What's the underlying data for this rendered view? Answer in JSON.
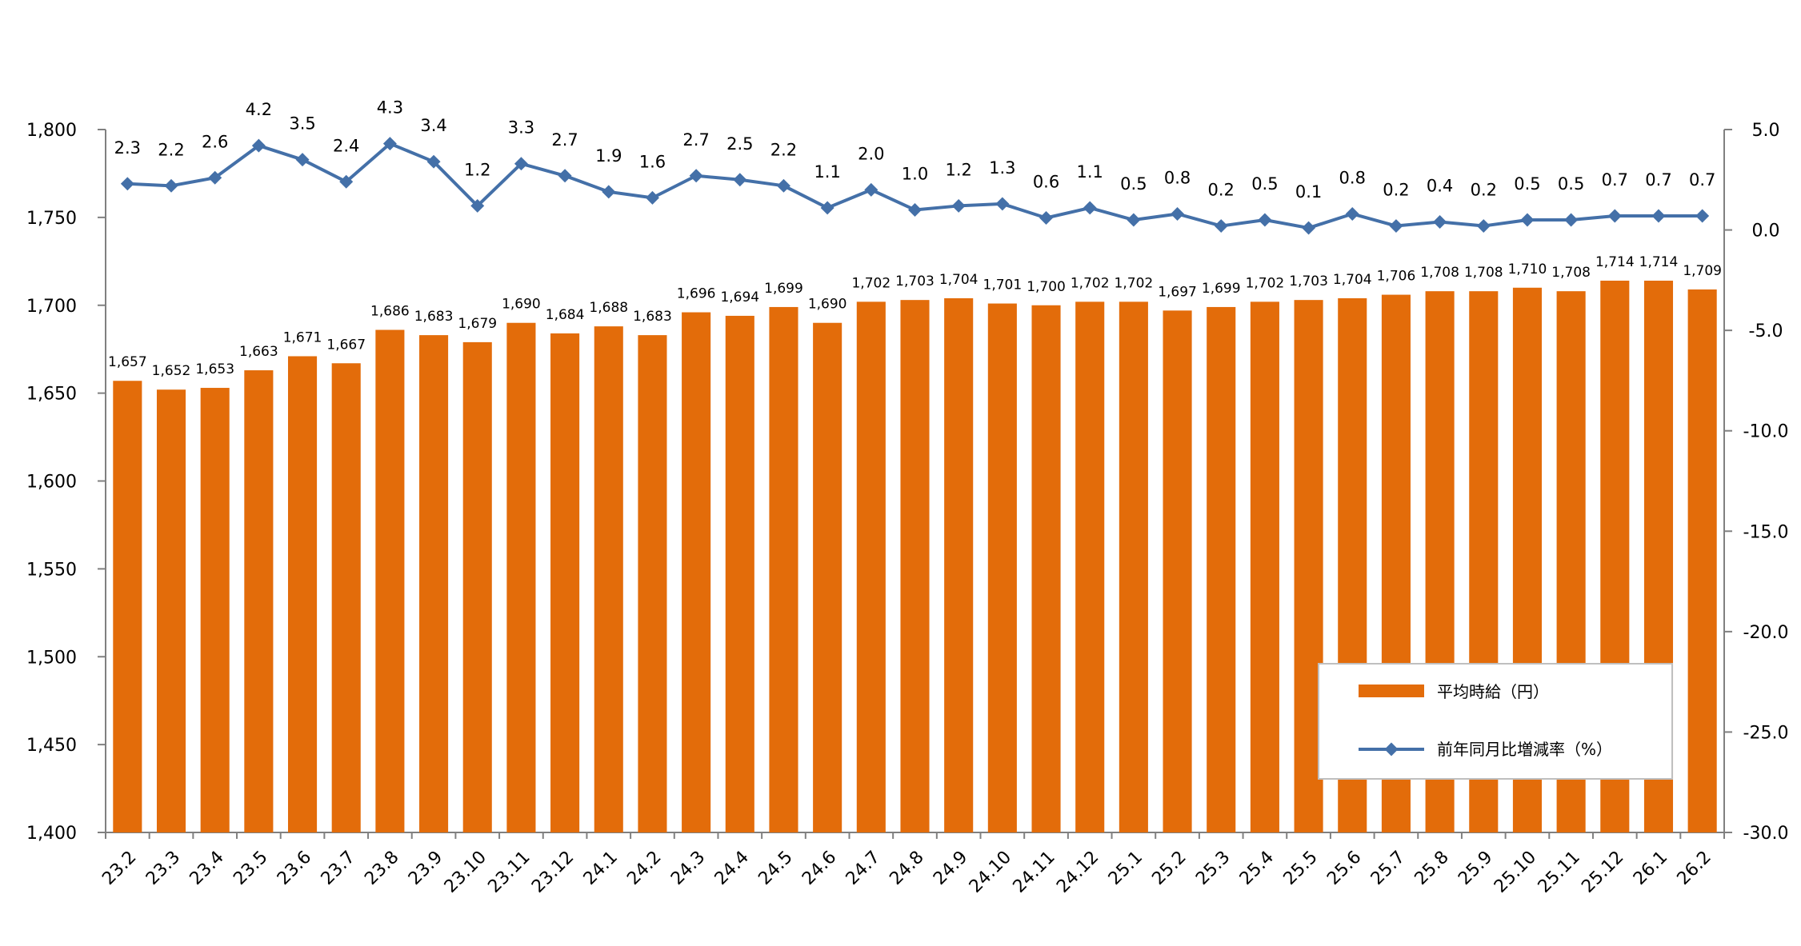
{
  "chart_data": {
    "type": "bar",
    "categories": [
      "23.2",
      "23.3",
      "23.4",
      "23.5",
      "23.6",
      "23.7",
      "23.8",
      "23.9",
      "23.10",
      "23.11",
      "23.12",
      "24.1",
      "24.2",
      "24.3",
      "24.4",
      "24.5",
      "24.6",
      "24.7",
      "24.8",
      "24.9",
      "24.10",
      "24.11",
      "24.12",
      "25.1",
      "25.2",
      "25.3",
      "25.4",
      "25.5",
      "25.6",
      "25.7",
      "25.8",
      "25.9",
      "25.10",
      "25.11",
      "25.12",
      "26.1",
      "26.2"
    ],
    "series": [
      {
        "name": "平均時給（円）",
        "type": "bar",
        "axis": "left",
        "color": "#E36C0A",
        "values": [
          1657,
          1652,
          1653,
          1663,
          1671,
          1667,
          1686,
          1683,
          1679,
          1690,
          1684,
          1688,
          1683,
          1696,
          1694,
          1699,
          1690,
          1702,
          1703,
          1704,
          1701,
          1700,
          1702,
          1702,
          1697,
          1699,
          1702,
          1703,
          1704,
          1706,
          1708,
          1708,
          1710,
          1708,
          1714,
          1714,
          1709
        ],
        "labels": [
          "1,657",
          "1,652",
          "1,653",
          "1,663",
          "1,671",
          "1,667",
          "1,686",
          "1,683",
          "1,679",
          "1,690",
          "1,684",
          "1,688",
          "1,683",
          "1,696",
          "1,694",
          "1,699",
          "1,690",
          "1,702",
          "1,703",
          "1,704",
          "1,701",
          "1,700",
          "1,702",
          "1,702",
          "1,697",
          "1,699",
          "1,702",
          "1,703",
          "1,704",
          "1,706",
          "1,708",
          "1,708",
          "1,710",
          "1,708",
          "1,714",
          "1,714",
          "1,709"
        ]
      },
      {
        "name": "前年同月比増減率（%）",
        "type": "line",
        "axis": "right",
        "color": "#4470A8",
        "values": [
          2.3,
          2.2,
          2.6,
          4.2,
          3.5,
          2.4,
          4.3,
          3.4,
          1.2,
          3.3,
          2.7,
          1.9,
          1.6,
          2.7,
          2.5,
          2.2,
          1.1,
          2.0,
          1.0,
          1.2,
          1.3,
          0.6,
          1.1,
          0.5,
          0.8,
          0.2,
          0.5,
          0.1,
          0.8,
          0.2,
          0.4,
          0.2,
          0.5,
          0.5,
          0.7,
          0.7,
          0.7
        ],
        "labels": [
          "2.3",
          "2.2",
          "2.6",
          "4.2",
          "3.5",
          "2.4",
          "4.3",
          "3.4",
          "1.2",
          "3.3",
          "2.7",
          "1.9",
          "1.6",
          "2.7",
          "2.5",
          "2.2",
          "1.1",
          "2.0",
          "1.0",
          "1.2",
          "1.3",
          "0.6",
          "1.1",
          "0.5",
          "0.8",
          "0.2",
          "0.5",
          "0.1",
          "0.8",
          "0.2",
          "0.4",
          "0.2",
          "0.5",
          "0.5",
          "0.7",
          "0.7",
          "0.7"
        ]
      }
    ],
    "y_left": {
      "ylim": [
        1400,
        1800
      ],
      "ticks": [
        1400,
        1450,
        1500,
        1550,
        1600,
        1650,
        1700,
        1750,
        1800
      ],
      "tick_labels": [
        "1,400",
        "1,450",
        "1,500",
        "1,550",
        "1,600",
        "1,650",
        "1,700",
        "1,750",
        "1,800"
      ],
      "tick_color": "#000000"
    },
    "y_right": {
      "ylim": [
        -30,
        5
      ],
      "ticks": [
        5,
        0,
        -5,
        -10,
        -15,
        -20,
        -25,
        -30
      ],
      "tick_labels": [
        "5.0",
        "0.0",
        "-5.0",
        "-10.0",
        "-15.0",
        "-20.0",
        "-25.0",
        "-30.0"
      ],
      "positive_color": "#000000",
      "negative_color": "#FF0000"
    },
    "grid": false,
    "legend_position": "bottom-right"
  }
}
